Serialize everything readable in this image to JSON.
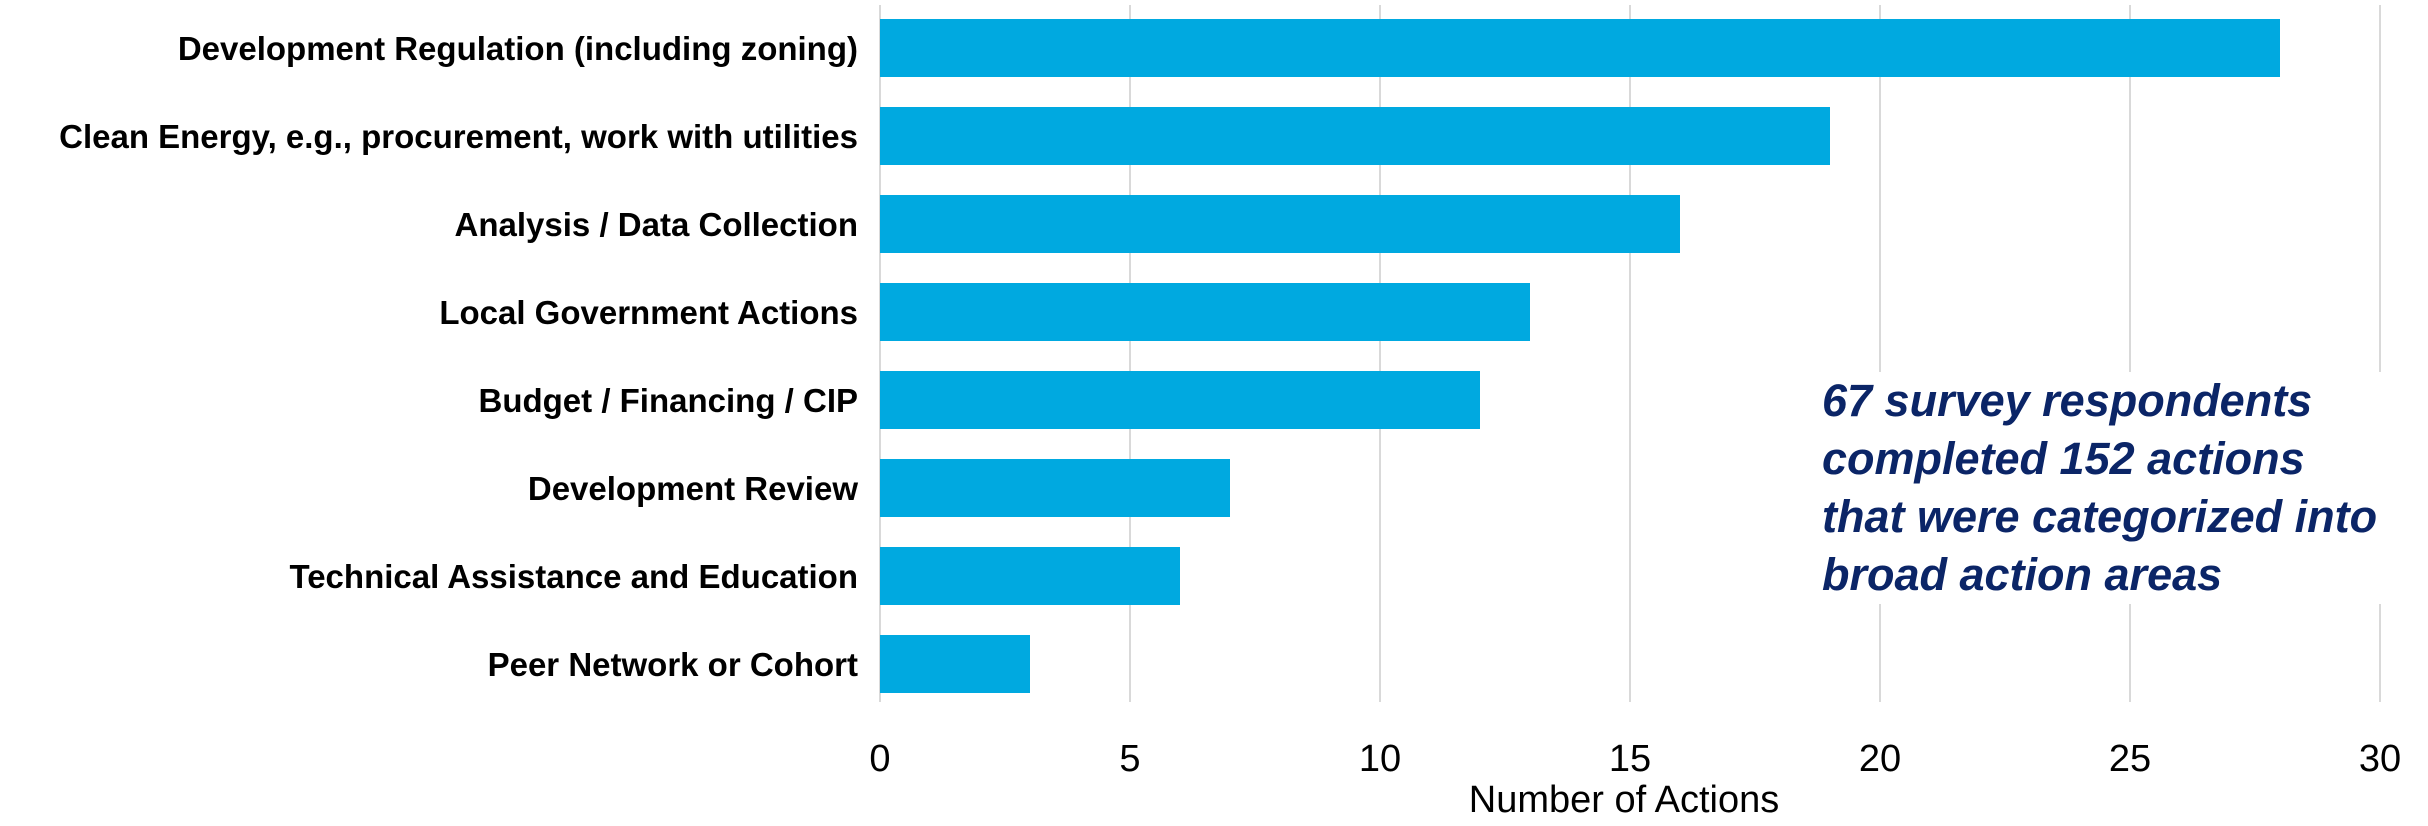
{
  "chart_data": {
    "type": "bar",
    "orientation": "horizontal",
    "categories": [
      "Development Regulation (including zoning)",
      "Clean Energy, e.g., procurement, work with utilities",
      "Analysis / Data Collection",
      "Local Government Actions",
      "Budget / Financing / CIP",
      "Development Review",
      "Technical Assistance and Education",
      "Peer Network or Cohort"
    ],
    "values": [
      28,
      19,
      16,
      13,
      12,
      7,
      6,
      3
    ],
    "xlabel": "Number of Actions",
    "ylabel": "",
    "xlim": [
      0,
      30
    ],
    "xticks": [
      "0",
      "5",
      "10",
      "15",
      "20",
      "25",
      "30"
    ],
    "grid": "vertical",
    "annotation": [
      "67 survey respondents",
      "completed 152 actions",
      "that were categorized into",
      "broad action areas"
    ]
  },
  "colors": {
    "bar": "#00a9e0",
    "grid": "#d9d9d9",
    "annotation": "#0b2567"
  }
}
